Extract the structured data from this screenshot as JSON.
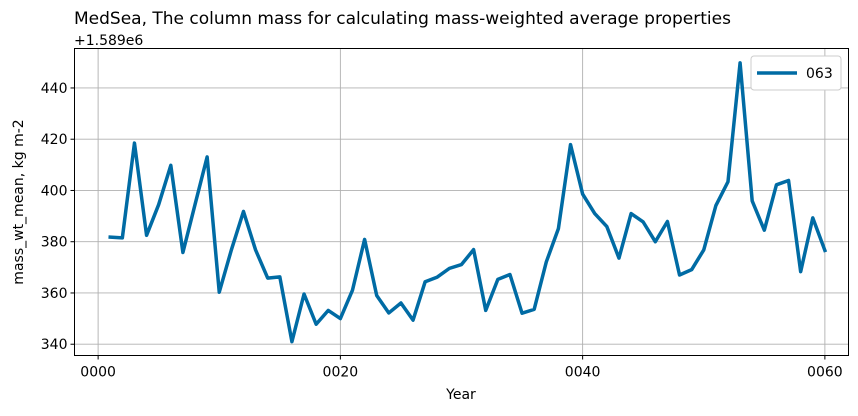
{
  "chart_data": {
    "type": "line",
    "title": "MedSea, The column mass for calculating mass-weighted average properties",
    "offset_label": "+1.589e6",
    "offset": 1589000,
    "xlabel": "Year",
    "ylabel": "mass_wt_mean, kg m-2",
    "xlim": [
      -1.95,
      61.95
    ],
    "ylim": [
      335.6,
      455.4
    ],
    "x_ticks": [
      0,
      20,
      40,
      60
    ],
    "x_tick_labels": [
      "0000",
      "0020",
      "0040",
      "0060"
    ],
    "y_ticks": [
      340,
      360,
      380,
      400,
      420,
      440
    ],
    "y_tick_labels": [
      "340",
      "360",
      "380",
      "400",
      "420",
      "440"
    ],
    "grid": true,
    "legend_position": "top-right",
    "series": [
      {
        "name": "063",
        "color": "#006ba4",
        "x": [
          1,
          2,
          3,
          4,
          5,
          6,
          7,
          8,
          9,
          10,
          11,
          12,
          13,
          14,
          15,
          16,
          17,
          18,
          19,
          20,
          21,
          22,
          23,
          24,
          25,
          26,
          27,
          28,
          29,
          30,
          31,
          32,
          33,
          34,
          35,
          36,
          37,
          38,
          39,
          40,
          41,
          42,
          43,
          44,
          45,
          46,
          47,
          48,
          49,
          50,
          51,
          52,
          53,
          54,
          55,
          56,
          57,
          58,
          59,
          60
        ],
        "values": [
          381.8,
          381.5,
          418.5,
          382.5,
          394.5,
          409.8,
          375.8,
          394.5,
          413.1,
          360.3,
          376.8,
          391.8,
          376.8,
          365.8,
          366.3,
          341.0,
          359.6,
          347.8,
          353.2,
          350.0,
          361.1,
          380.9,
          359.0,
          352.2,
          356.1,
          349.4,
          364.4,
          366.2,
          369.6,
          371.1,
          376.9,
          353.2,
          365.3,
          367.2,
          352.1,
          353.6,
          372.1,
          385.1,
          417.9,
          398.6,
          391.0,
          385.9,
          373.6,
          391.0,
          387.7,
          380.0,
          387.9,
          367.0,
          369.1,
          376.8,
          394.1,
          403.4,
          449.8,
          395.9,
          384.5,
          402.2,
          403.9,
          368.3,
          389.3,
          376.6
        ]
      }
    ]
  }
}
